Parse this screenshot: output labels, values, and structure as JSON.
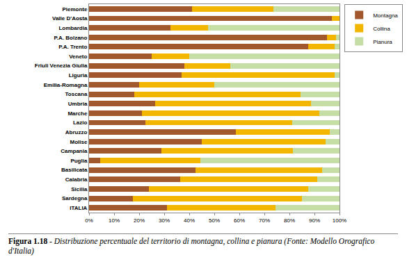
{
  "chart_data": {
    "type": "bar",
    "orientation": "horizontal",
    "stacked": true,
    "title": "Figura 1.18 - Distribuzione percentuale del territorio di montagna, collina e pianura (Fonte: Modello Orografico d'Italia)",
    "categories": [
      "Piemonte",
      "Valle D'Aosta",
      "Lombardia",
      "P.A. Bolzano",
      "P.A. Trento",
      "Veneto",
      "Friuli Venezia Giulia",
      "Liguria",
      "Emilia-Romagna",
      "Toscana",
      "Umbria",
      "Marche",
      "Lazio",
      "Abruzzo",
      "Molise",
      "Campania",
      "Puglia",
      "Basilicata",
      "Calabria",
      "Sicilia",
      "Sardegna",
      "ITALIA"
    ],
    "series": [
      {
        "name": "Montagna",
        "color": "#a0582c",
        "values": [
          41,
          97,
          32.5,
          95,
          87.5,
          25,
          38,
          37,
          20,
          18,
          26.5,
          21,
          22.5,
          58.5,
          45,
          29,
          4.5,
          42.5,
          36.5,
          24,
          17.5,
          31
        ]
      },
      {
        "name": "Collina",
        "color": "#f2b600",
        "values": [
          32.5,
          3,
          15,
          3.5,
          10.5,
          15,
          18.5,
          61,
          30,
          66.5,
          62,
          71,
          58.5,
          37.5,
          49.5,
          52.5,
          40,
          50.5,
          54.5,
          63.5,
          67.5,
          43.5
        ]
      },
      {
        "name": "Pianura",
        "color": "#c4dea6",
        "values": [
          26.5,
          0,
          52.5,
          1.5,
          2,
          60,
          43.5,
          2,
          50,
          15.5,
          11.5,
          8,
          19,
          4,
          5.5,
          18.5,
          55.5,
          7,
          9,
          12.5,
          15,
          25.5
        ]
      }
    ],
    "xlim": [
      0,
      100
    ],
    "xticks": [
      {
        "value": 0,
        "label": "0%"
      },
      {
        "value": 10,
        "label": "10%"
      },
      {
        "value": 20,
        "label": "20%"
      },
      {
        "value": 30,
        "label": "30%"
      },
      {
        "value": 40,
        "label": "40%"
      },
      {
        "value": 50,
        "label": "50%"
      },
      {
        "value": 60,
        "label": "60%"
      },
      {
        "value": 70,
        "label": "70%"
      },
      {
        "value": 80,
        "label": "80%"
      },
      {
        "value": 90,
        "label": "90%"
      },
      {
        "value": 100,
        "label": "100%"
      }
    ],
    "grid": false,
    "legend": "top right",
    "data_labels": false
  }
}
